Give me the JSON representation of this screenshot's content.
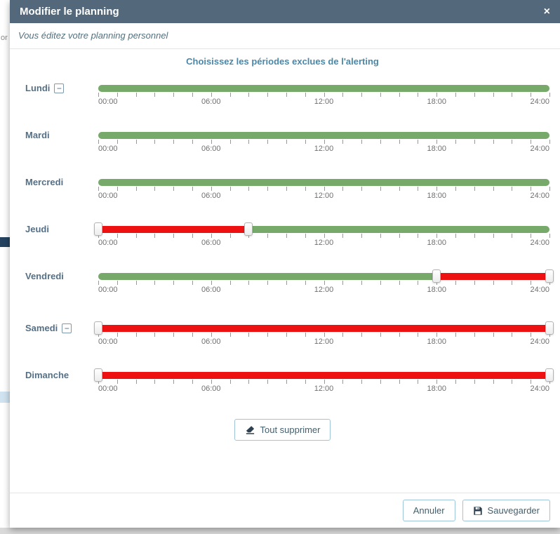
{
  "ui": {
    "minus_glyph": "−"
  },
  "background": {
    "left_fragment_text": "or"
  },
  "modal": {
    "title": "Modifier le planning",
    "close_label": "×",
    "subtitle": "Vous éditez votre planning personnel",
    "section_title": "Choisissez les périodes exclues de l'alerting"
  },
  "slider": {
    "time_labels": [
      "00:00",
      "06:00",
      "12:00",
      "18:00",
      "24:00"
    ],
    "max_hours": 24,
    "tick_count": 24
  },
  "colors": {
    "header_bg": "#53687a",
    "accent_blue": "#4a87a8",
    "day_label": "#557086",
    "included_green": "#76a96a",
    "excluded_red": "#ee1111"
  },
  "days": [
    {
      "label": "Lundi",
      "collapse_button": true,
      "excluded": []
    },
    {
      "label": "Mardi",
      "collapse_button": false,
      "excluded": []
    },
    {
      "label": "Mercredi",
      "collapse_button": false,
      "excluded": []
    },
    {
      "label": "Jeudi",
      "collapse_button": false,
      "excluded": [
        {
          "from": 0,
          "to": 8
        }
      ]
    },
    {
      "label": "Vendredi",
      "collapse_button": false,
      "excluded": [
        {
          "from": 18,
          "to": 24
        }
      ]
    },
    {
      "label": "Samedi",
      "collapse_button": true,
      "excluded": [
        {
          "from": 0,
          "to": 24
        }
      ],
      "extra_gap": true
    },
    {
      "label": "Dimanche",
      "collapse_button": false,
      "excluded": [
        {
          "from": 0,
          "to": 24
        }
      ]
    }
  ],
  "actions": {
    "clear_all": "Tout supprimer",
    "cancel": "Annuler",
    "save": "Sauvegarder"
  }
}
